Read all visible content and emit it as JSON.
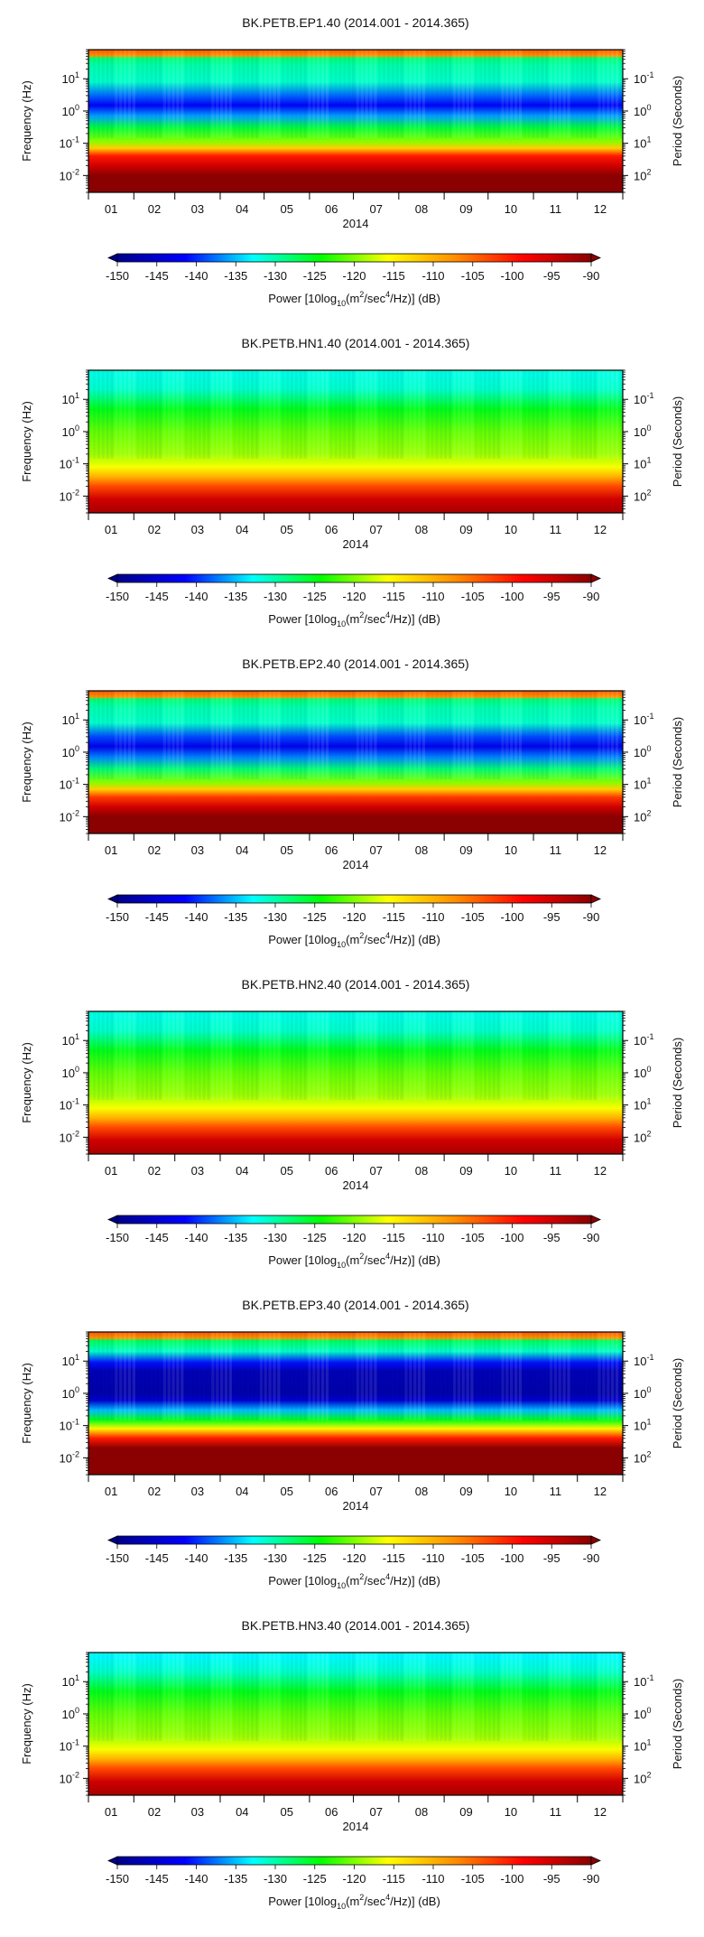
{
  "axis_labels": {
    "left": "Frequency (Hz)",
    "right": "Period (Seconds)",
    "year": "2014"
  },
  "ticks": {
    "months": [
      "01",
      "02",
      "03",
      "04",
      "05",
      "06",
      "07",
      "08",
      "09",
      "10",
      "11",
      "12"
    ],
    "left": [
      {
        "base": "10",
        "exp": "1"
      },
      {
        "base": "10",
        "exp": "0"
      },
      {
        "base": "10",
        "exp": "-1"
      },
      {
        "base": "10",
        "exp": "-2"
      }
    ],
    "right": [
      {
        "base": "10",
        "exp": "-1"
      },
      {
        "base": "10",
        "exp": "0"
      },
      {
        "base": "10",
        "exp": "1"
      },
      {
        "base": "10",
        "exp": "2"
      }
    ]
  },
  "colorbar": {
    "ticks": [
      "-150",
      "-145",
      "-140",
      "-135",
      "-130",
      "-125",
      "-120",
      "-115",
      "-110",
      "-105",
      "-100",
      "-95",
      "-90"
    ],
    "label_prefix": "Power [10log",
    "label_sub": "10",
    "label_mid": "(m",
    "label_sup1": "2",
    "label_mid2": "/sec",
    "label_sup2": "4",
    "label_suffix": "/Hz)] (dB)",
    "colors": [
      "#00008b",
      "#0000ff",
      "#00ffff",
      "#00ff00",
      "#ffff00",
      "#ff8c00",
      "#ff0000",
      "#8b0000"
    ]
  },
  "chart_data": [
    {
      "type": "heatmap",
      "title": "BK.PETB.EP1.40 (2014.001 - 2014.365)",
      "x_range": [
        "2014.001",
        "2014.365"
      ],
      "x_ticks": [
        "01",
        "02",
        "03",
        "04",
        "05",
        "06",
        "07",
        "08",
        "09",
        "10",
        "11",
        "12"
      ],
      "x_label": "2014",
      "y_label_left": "Frequency (Hz)",
      "y_label_right": "Period (Seconds)",
      "y_scale": "log",
      "y_range_hz": [
        0.003,
        80
      ],
      "color_range_db": [
        -150,
        -90
      ],
      "profile": [
        {
          "f": 0.003,
          "db": -90
        },
        {
          "f": 0.01,
          "db": -90
        },
        {
          "f": 0.02,
          "db": -95
        },
        {
          "f": 0.04,
          "db": -100
        },
        {
          "f": 0.07,
          "db": -112
        },
        {
          "f": 0.12,
          "db": -120
        },
        {
          "f": 0.3,
          "db": -126
        },
        {
          "f": 0.7,
          "db": -136
        },
        {
          "f": 1.5,
          "db": -142
        },
        {
          "f": 3,
          "db": -138
        },
        {
          "f": 8,
          "db": -131
        },
        {
          "f": 25,
          "db": -130
        },
        {
          "f": 45,
          "db": -128
        },
        {
          "f": 50,
          "db": -108
        },
        {
          "f": 80,
          "db": -104
        }
      ]
    },
    {
      "type": "heatmap",
      "title": "BK.PETB.HN1.40 (2014.001 - 2014.365)",
      "x_range": [
        "2014.001",
        "2014.365"
      ],
      "x_ticks": [
        "01",
        "02",
        "03",
        "04",
        "05",
        "06",
        "07",
        "08",
        "09",
        "10",
        "11",
        "12"
      ],
      "x_label": "2014",
      "y_label_left": "Frequency (Hz)",
      "y_label_right": "Period (Seconds)",
      "y_scale": "log",
      "y_range_hz": [
        0.003,
        80
      ],
      "color_range_db": [
        -150,
        -90
      ],
      "profile": [
        {
          "f": 0.003,
          "db": -92
        },
        {
          "f": 0.008,
          "db": -95
        },
        {
          "f": 0.02,
          "db": -103
        },
        {
          "f": 0.04,
          "db": -110
        },
        {
          "f": 0.08,
          "db": -116
        },
        {
          "f": 0.2,
          "db": -119
        },
        {
          "f": 1,
          "db": -121
        },
        {
          "f": 5,
          "db": -125
        },
        {
          "f": 20,
          "db": -131
        },
        {
          "f": 60,
          "db": -132
        },
        {
          "f": 80,
          "db": -131
        }
      ]
    },
    {
      "type": "heatmap",
      "title": "BK.PETB.EP2.40 (2014.001 - 2014.365)",
      "x_range": [
        "2014.001",
        "2014.365"
      ],
      "x_ticks": [
        "01",
        "02",
        "03",
        "04",
        "05",
        "06",
        "07",
        "08",
        "09",
        "10",
        "11",
        "12"
      ],
      "x_label": "2014",
      "y_label_left": "Frequency (Hz)",
      "y_label_right": "Period (Seconds)",
      "y_scale": "log",
      "y_range_hz": [
        0.003,
        80
      ],
      "color_range_db": [
        -150,
        -90
      ],
      "profile": [
        {
          "f": 0.003,
          "db": -90
        },
        {
          "f": 0.01,
          "db": -90
        },
        {
          "f": 0.02,
          "db": -95
        },
        {
          "f": 0.04,
          "db": -102
        },
        {
          "f": 0.07,
          "db": -112
        },
        {
          "f": 0.12,
          "db": -120
        },
        {
          "f": 0.3,
          "db": -128
        },
        {
          "f": 0.7,
          "db": -137
        },
        {
          "f": 1.5,
          "db": -143
        },
        {
          "f": 3,
          "db": -139
        },
        {
          "f": 8,
          "db": -131
        },
        {
          "f": 25,
          "db": -130
        },
        {
          "f": 45,
          "db": -128
        },
        {
          "f": 50,
          "db": -108
        },
        {
          "f": 80,
          "db": -104
        }
      ]
    },
    {
      "type": "heatmap",
      "title": "BK.PETB.HN2.40 (2014.001 - 2014.365)",
      "x_range": [
        "2014.001",
        "2014.365"
      ],
      "x_ticks": [
        "01",
        "02",
        "03",
        "04",
        "05",
        "06",
        "07",
        "08",
        "09",
        "10",
        "11",
        "12"
      ],
      "x_label": "2014",
      "y_label_left": "Frequency (Hz)",
      "y_label_right": "Period (Seconds)",
      "y_scale": "log",
      "y_range_hz": [
        0.003,
        80
      ],
      "color_range_db": [
        -150,
        -90
      ],
      "profile": [
        {
          "f": 0.003,
          "db": -92
        },
        {
          "f": 0.008,
          "db": -95
        },
        {
          "f": 0.02,
          "db": -103
        },
        {
          "f": 0.04,
          "db": -110
        },
        {
          "f": 0.08,
          "db": -116
        },
        {
          "f": 0.2,
          "db": -119
        },
        {
          "f": 1,
          "db": -121
        },
        {
          "f": 5,
          "db": -125
        },
        {
          "f": 20,
          "db": -131
        },
        {
          "f": 60,
          "db": -132
        },
        {
          "f": 80,
          "db": -131
        }
      ]
    },
    {
      "type": "heatmap",
      "title": "BK.PETB.EP3.40 (2014.001 - 2014.365)",
      "x_range": [
        "2014.001",
        "2014.365"
      ],
      "x_ticks": [
        "01",
        "02",
        "03",
        "04",
        "05",
        "06",
        "07",
        "08",
        "09",
        "10",
        "11",
        "12"
      ],
      "x_label": "2014",
      "y_label_left": "Frequency (Hz)",
      "y_label_right": "Period (Seconds)",
      "y_scale": "log",
      "y_range_hz": [
        0.003,
        80
      ],
      "color_range_db": [
        -150,
        -90
      ],
      "profile": [
        {
          "f": 0.003,
          "db": -90
        },
        {
          "f": 0.02,
          "db": -90
        },
        {
          "f": 0.04,
          "db": -100
        },
        {
          "f": 0.08,
          "db": -115
        },
        {
          "f": 0.15,
          "db": -125
        },
        {
          "f": 0.3,
          "db": -135
        },
        {
          "f": 0.6,
          "db": -145
        },
        {
          "f": 1,
          "db": -148
        },
        {
          "f": 5,
          "db": -147
        },
        {
          "f": 9,
          "db": -141
        },
        {
          "f": 20,
          "db": -131
        },
        {
          "f": 45,
          "db": -127
        },
        {
          "f": 50,
          "db": -108
        },
        {
          "f": 80,
          "db": -104
        }
      ]
    },
    {
      "type": "heatmap",
      "title": "BK.PETB.HN3.40 (2014.001 - 2014.365)",
      "x_range": [
        "2014.001",
        "2014.365"
      ],
      "x_ticks": [
        "01",
        "02",
        "03",
        "04",
        "05",
        "06",
        "07",
        "08",
        "09",
        "10",
        "11",
        "12"
      ],
      "x_label": "2014",
      "y_label_left": "Frequency (Hz)",
      "y_label_right": "Period (Seconds)",
      "y_scale": "log",
      "y_range_hz": [
        0.003,
        80
      ],
      "color_range_db": [
        -150,
        -90
      ],
      "profile": [
        {
          "f": 0.003,
          "db": -92
        },
        {
          "f": 0.008,
          "db": -95
        },
        {
          "f": 0.02,
          "db": -103
        },
        {
          "f": 0.04,
          "db": -110
        },
        {
          "f": 0.08,
          "db": -116
        },
        {
          "f": 0.2,
          "db": -119
        },
        {
          "f": 1,
          "db": -121
        },
        {
          "f": 5,
          "db": -125
        },
        {
          "f": 20,
          "db": -131
        },
        {
          "f": 60,
          "db": -133
        },
        {
          "f": 80,
          "db": -132
        }
      ]
    }
  ]
}
